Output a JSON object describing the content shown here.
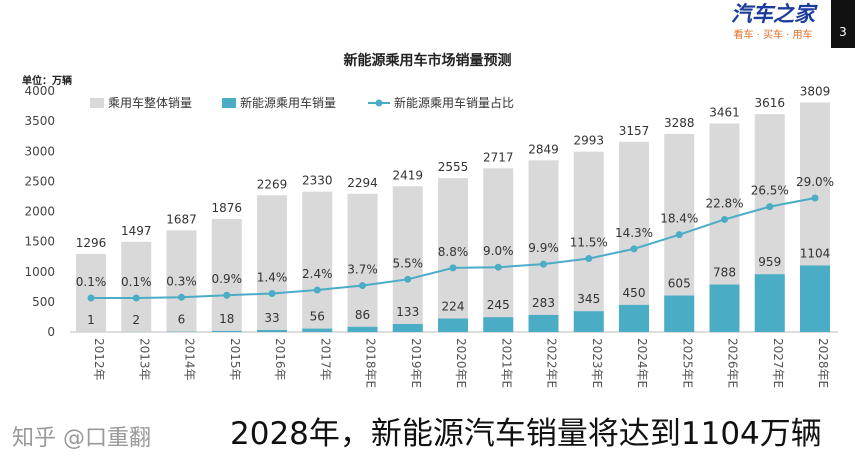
{
  "logo": {
    "main": "汽车之家",
    "sub": "看车 · 买车 · 用车"
  },
  "page_number": "3",
  "caption": "2028年，新能源汽车销量将达到1104万辆",
  "watermark": "知乎 @口重翻",
  "chart_data": {
    "type": "bar",
    "title": "新能源乘用车市场销量预测",
    "unit_label": "单位：万辆",
    "categories": [
      "2012年",
      "2013年",
      "2014年",
      "2015年",
      "2016年",
      "2017年",
      "2018年E",
      "2019年E",
      "2020年E",
      "2021年E",
      "2022年E",
      "2023年E",
      "2024年E",
      "2025年E",
      "2026年E",
      "2027年E",
      "2028年E"
    ],
    "ylim": [
      0,
      4000
    ],
    "yticks": [
      0,
      500,
      1000,
      1500,
      2000,
      2500,
      3000,
      3500,
      4000
    ],
    "grid": false,
    "legend_position": "top-left",
    "series": [
      {
        "name": "乘用车整体销量",
        "type": "bar",
        "color": "#d9d9d9",
        "values": [
          1296,
          1497,
          1687,
          1876,
          2269,
          2330,
          2294,
          2419,
          2555,
          2717,
          2849,
          2993,
          3157,
          3288,
          3461,
          3616,
          3809
        ]
      },
      {
        "name": "新能源乘用车销量",
        "type": "bar",
        "color": "#4bacc6",
        "values": [
          1,
          2,
          6,
          18,
          33,
          56,
          86,
          133,
          224,
          245,
          283,
          345,
          450,
          605,
          788,
          959,
          1104
        ]
      },
      {
        "name": "新能源乘用车销量占比",
        "type": "line",
        "color": "#4bacc6",
        "values": [
          0.1,
          0.1,
          0.3,
          0.9,
          1.4,
          2.4,
          3.7,
          5.5,
          8.8,
          9.0,
          9.9,
          11.5,
          14.3,
          18.4,
          22.8,
          26.5,
          29.0
        ],
        "labels": [
          "0.1%",
          "0.1%",
          "0.3%",
          "0.9%",
          "1.4%",
          "2.4%",
          "3.7%",
          "5.5%",
          "8.8%",
          "9.0%",
          "9.9%",
          "11.5%",
          "14.3%",
          "18.4%",
          "22.8%",
          "26.5%",
          "29.0%"
        ]
      }
    ]
  }
}
